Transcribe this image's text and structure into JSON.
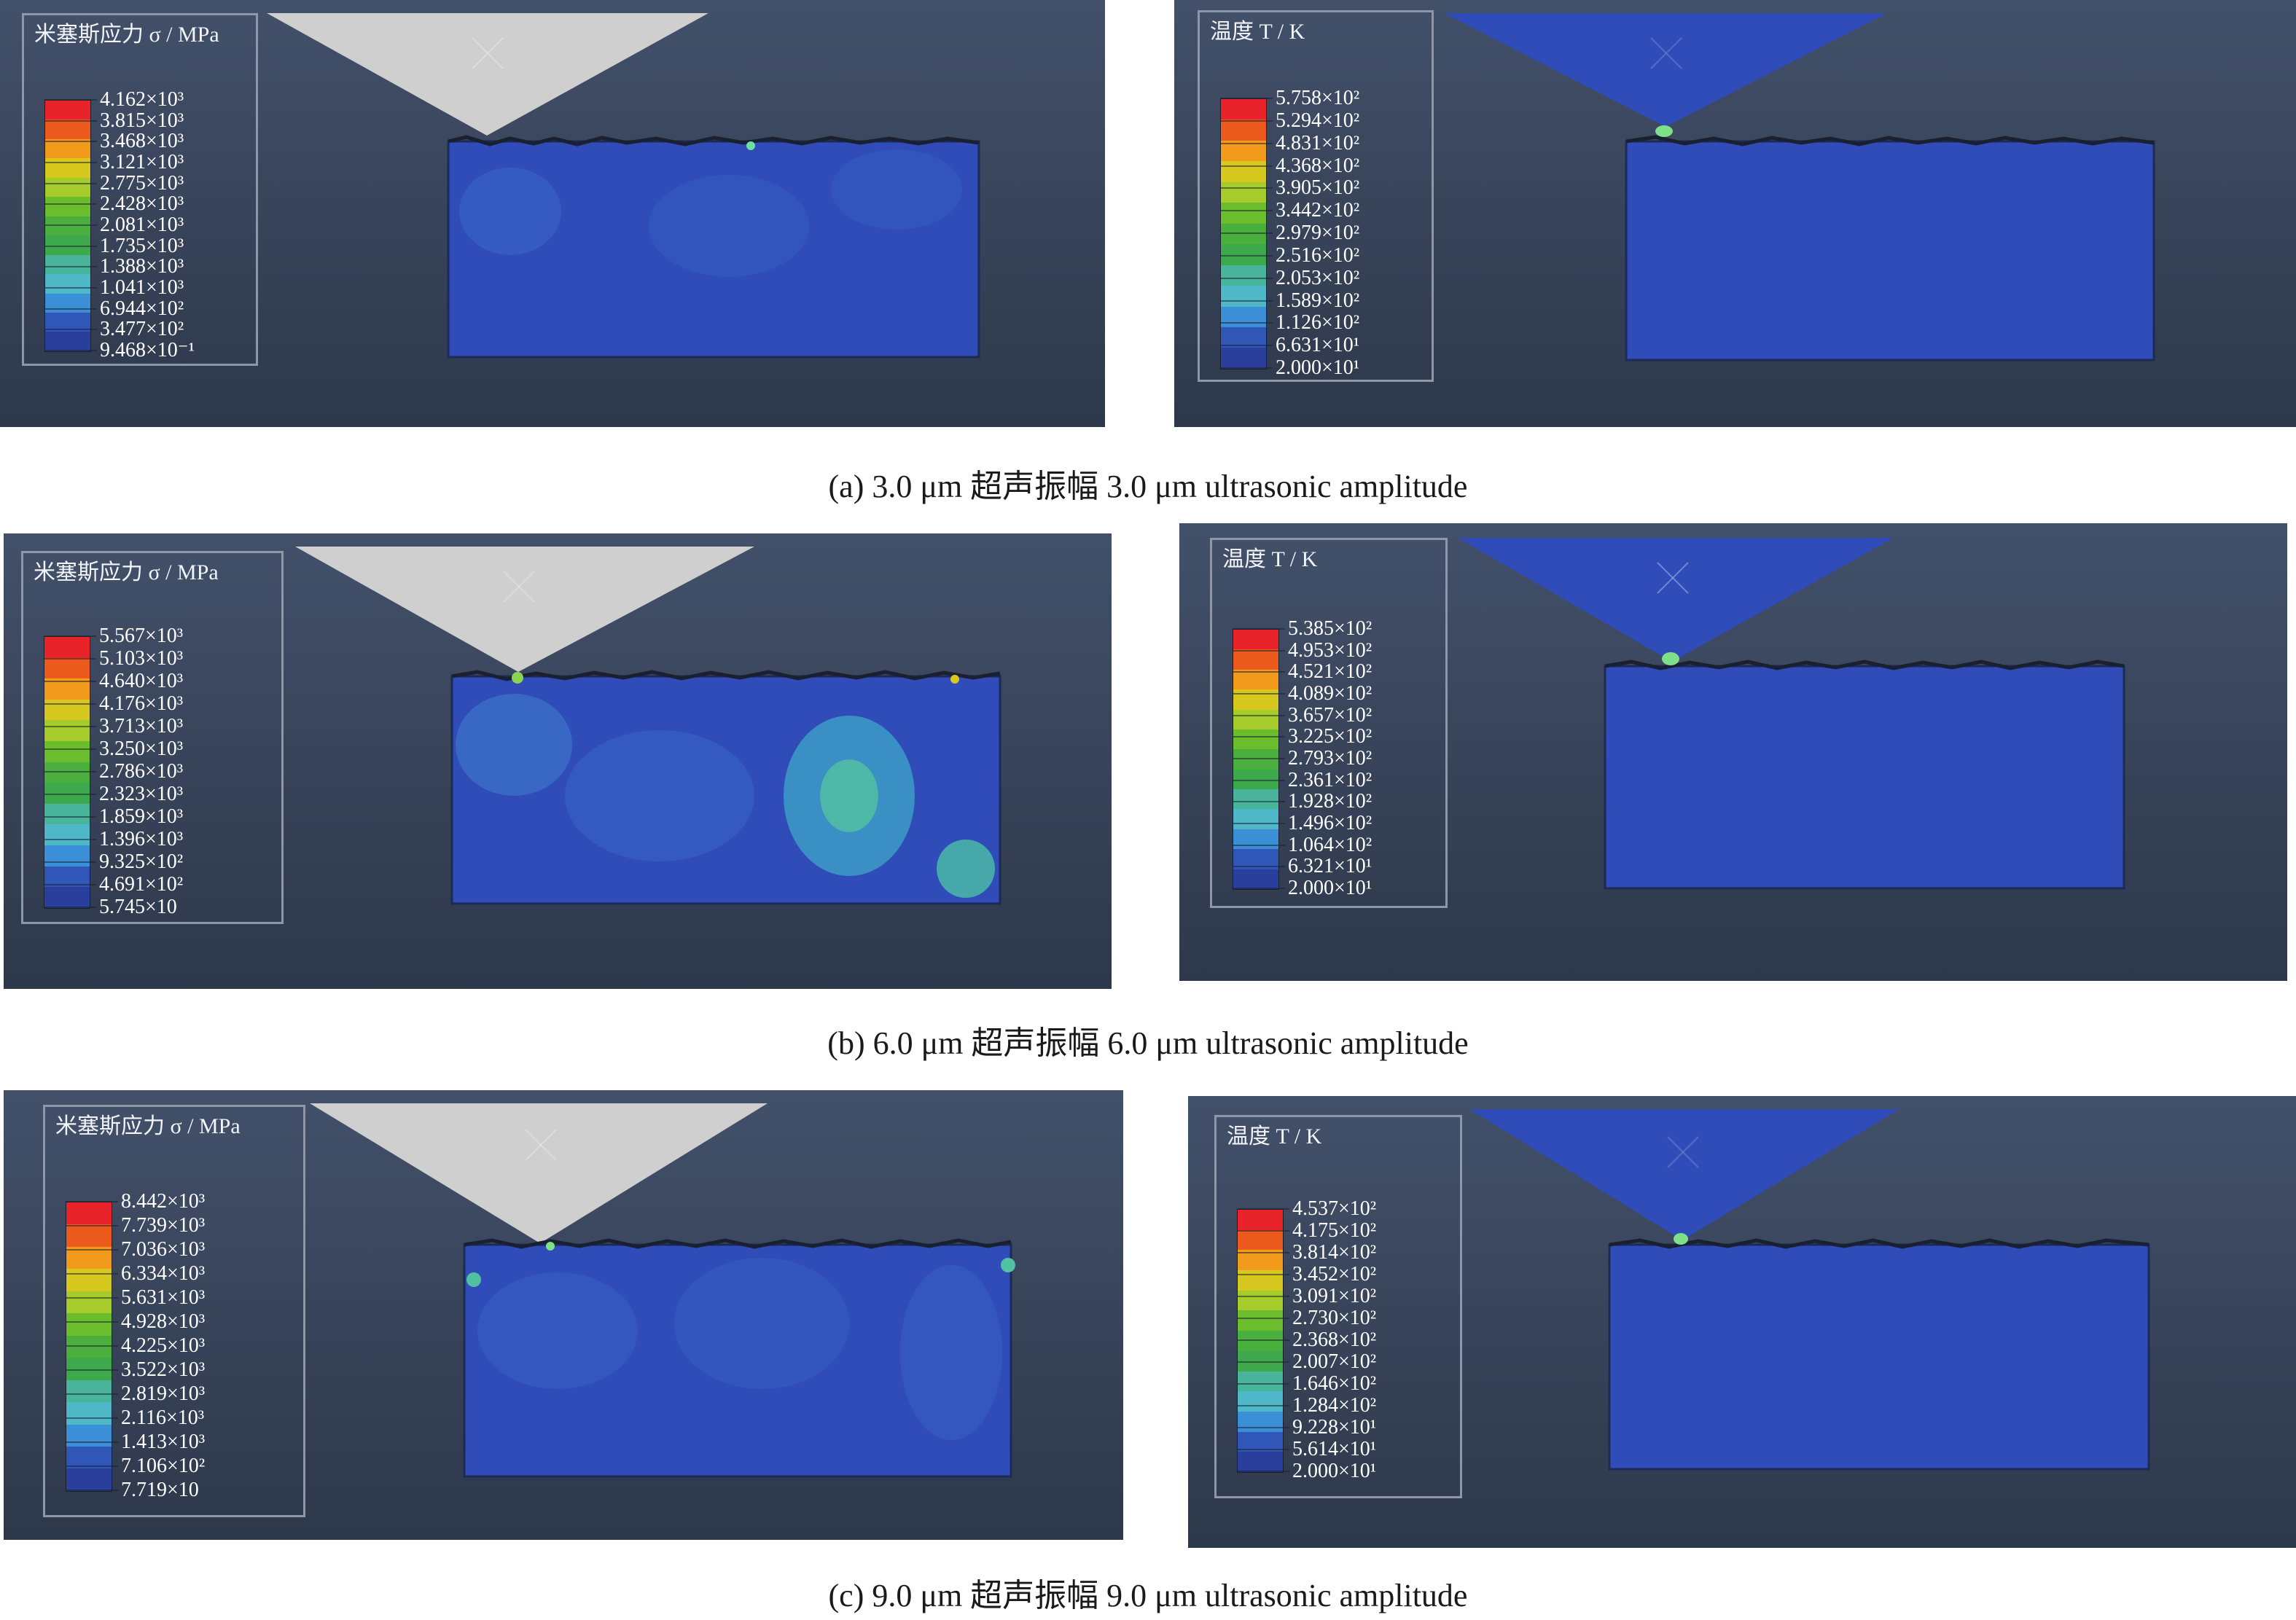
{
  "figure": {
    "rows": [
      {
        "caption": "(a) 3.0 μm 超声振幅 3.0 μm ultrasonic amplitude",
        "stress_legend": {
          "title": "米塞斯应力 σ / MPa",
          "values": [
            "4.162×10³",
            "3.815×10³",
            "3.468×10³",
            "3.121×10³",
            "2.775×10³",
            "2.428×10³",
            "2.081×10³",
            "1.735×10³",
            "1.388×10³",
            "1.041×10³",
            "6.944×10²",
            "3.477×10²",
            "9.468×10⁻¹"
          ]
        },
        "temp_legend": {
          "title": "温度 T / K",
          "values": [
            "5.758×10²",
            "5.294×10²",
            "4.831×10²",
            "4.368×10²",
            "3.905×10²",
            "3.442×10²",
            "2.979×10²",
            "2.516×10²",
            "2.053×10²",
            "1.589×10²",
            "1.126×10²",
            "6.631×10¹",
            "2.000×10¹"
          ]
        }
      },
      {
        "caption": "(b) 6.0 μm 超声振幅 6.0 μm ultrasonic amplitude",
        "stress_legend": {
          "title": "米塞斯应力 σ / MPa",
          "values": [
            "5.567×10³",
            "5.103×10³",
            "4.640×10³",
            "4.176×10³",
            "3.713×10³",
            "3.250×10³",
            "2.786×10³",
            "2.323×10³",
            "1.859×10³",
            "1.396×10³",
            "9.325×10²",
            "4.691×10²",
            "5.745×10"
          ]
        },
        "temp_legend": {
          "title": "温度 T / K",
          "values": [
            "5.385×10²",
            "4.953×10²",
            "4.521×10²",
            "4.089×10²",
            "3.657×10²",
            "3.225×10²",
            "2.793×10²",
            "2.361×10²",
            "1.928×10²",
            "1.496×10²",
            "1.064×10²",
            "6.321×10¹",
            "2.000×10¹"
          ]
        }
      },
      {
        "caption": "(c) 9.0 μm 超声振幅 9.0 μm ultrasonic amplitude",
        "stress_legend": {
          "title": "米塞斯应力 σ / MPa",
          "values": [
            "8.442×10³",
            "7.739×10³",
            "7.036×10³",
            "6.334×10³",
            "5.631×10³",
            "4.928×10³",
            "4.225×10³",
            "3.522×10³",
            "2.819×10³",
            "2.116×10³",
            "1.413×10³",
            "7.106×10²",
            "7.719×10"
          ]
        },
        "temp_legend": {
          "title": "温度 T / K",
          "values": [
            "4.537×10²",
            "4.175×10²",
            "3.814×10²",
            "3.452×10²",
            "3.091×10²",
            "2.730×10²",
            "2.368×10²",
            "2.007×10²",
            "1.646×10²",
            "1.284×10²",
            "9.228×10¹",
            "5.614×10¹",
            "2.000×10¹"
          ]
        }
      }
    ],
    "colorbar": [
      "#e8232a",
      "#ec5a1e",
      "#f29a1b",
      "#d6c81e",
      "#a5cc2a",
      "#6cbd2e",
      "#4aaf3c",
      "#3ea84c",
      "#48b59a",
      "#4fb8c8",
      "#3b8fd6",
      "#3056b8",
      "#2a3f9c"
    ],
    "colors": {
      "tool_stress": "#cccccc",
      "tool_temp": "#2f4cb8",
      "workpiece": "#2f4cb8",
      "hotspot": "#7fe08a",
      "panel_bg": "#39455b"
    }
  }
}
